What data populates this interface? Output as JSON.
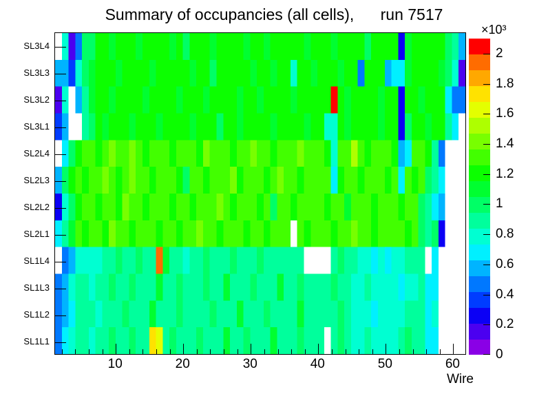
{
  "title": "Summary of occupancies (all cells),      run 7517",
  "colors": {
    "axis": "#000000",
    "text": "#000000",
    "background": "#FFFFFF"
  },
  "chart_data": {
    "type": "heatmap",
    "title": "Summary of occupancies (all cells),      run 7517",
    "xlabel": "Wire",
    "x_range": [
      1,
      62
    ],
    "x_major_ticks": [
      10,
      20,
      30,
      40,
      50,
      60
    ],
    "x_minor_tick_step": 2,
    "rows": [
      "SL3L4",
      "SL3L3",
      "SL3L2",
      "SL3L1",
      "SL2L4",
      "SL2L3",
      "SL2L2",
      "SL2L1",
      "SL1L4",
      "SL1L3",
      "SL1L2",
      "SL1L1"
    ],
    "z_axis": {
      "scale_label": "×10³",
      "tick_labels": [
        "0",
        "0.2",
        "0.4",
        "0.6",
        "0.8",
        "1",
        "1.2",
        "1.4",
        "1.6",
        "1.8",
        "2"
      ],
      "max": 2.1,
      "band_value_width": 0.105
    },
    "palette_low_to_high": [
      "#8A00E6",
      "#4B00F0",
      "#0B00F5",
      "#003CFF",
      "#0078FF",
      "#00B4FF",
      "#00F0FF",
      "#00FFD2",
      "#00FF9C",
      "#00FF66",
      "#00FF30",
      "#0CFF00",
      "#42FF00",
      "#78FF00",
      "#AEFF00",
      "#E4FF00",
      "#FFE200",
      "#FFA800",
      "#FF6C00",
      "#FF0000"
    ],
    "empty_color": "#FFFFFF",
    "grid_note": "palette index per wire (1-61), -1 = empty/white; rows listed top to bottom",
    "grid": [
      [
        -1,
        7,
        1,
        4,
        9,
        9,
        11,
        11,
        10,
        11,
        11,
        11,
        10,
        11,
        11,
        11,
        11,
        10,
        11,
        9,
        11,
        11,
        11,
        10,
        11,
        11,
        11,
        11,
        10,
        11,
        11,
        10,
        11,
        11,
        11,
        11,
        11,
        10,
        11,
        11,
        11,
        10,
        11,
        11,
        11,
        11,
        9,
        11,
        11,
        11,
        11,
        2,
        10,
        11,
        11,
        11,
        11,
        11,
        9,
        8,
        5
      ],
      [
        5,
        5,
        3,
        7,
        9,
        10,
        11,
        11,
        11,
        10,
        11,
        11,
        11,
        11,
        10,
        11,
        11,
        11,
        11,
        11,
        10,
        11,
        11,
        9,
        11,
        11,
        11,
        11,
        11,
        10,
        11,
        11,
        10,
        11,
        11,
        7,
        11,
        11,
        10,
        11,
        11,
        11,
        10,
        11,
        11,
        4,
        11,
        11,
        11,
        5,
        6,
        6,
        10,
        11,
        11,
        11,
        11,
        10,
        9,
        7,
        1
      ],
      [
        1,
        7,
        -1,
        5,
        8,
        10,
        11,
        11,
        10,
        11,
        11,
        11,
        11,
        10,
        11,
        11,
        11,
        11,
        10,
        11,
        11,
        11,
        10,
        11,
        11,
        11,
        11,
        10,
        11,
        11,
        10,
        11,
        11,
        11,
        11,
        10,
        11,
        11,
        11,
        11,
        11,
        19,
        11,
        10,
        11,
        11,
        11,
        11,
        10,
        11,
        11,
        2,
        11,
        11,
        10,
        11,
        11,
        11,
        6,
        4,
        4
      ],
      [
        3,
        5,
        -1,
        -1,
        8,
        9,
        11,
        10,
        11,
        11,
        11,
        10,
        11,
        11,
        11,
        10,
        11,
        11,
        11,
        11,
        10,
        11,
        11,
        11,
        9,
        11,
        11,
        10,
        11,
        11,
        11,
        11,
        10,
        11,
        11,
        11,
        11,
        10,
        11,
        11,
        7,
        7,
        11,
        10,
        11,
        11,
        11,
        11,
        10,
        11,
        11,
        2,
        9,
        11,
        11,
        10,
        11,
        11,
        8,
        6,
        -1
      ],
      [
        -1,
        6,
        9,
        11,
        12,
        12,
        11,
        12,
        13,
        12,
        12,
        13,
        12,
        11,
        12,
        12,
        12,
        11,
        12,
        12,
        12,
        11,
        13,
        12,
        12,
        12,
        11,
        12,
        12,
        13,
        12,
        12,
        11,
        12,
        12,
        12,
        13,
        12,
        12,
        12,
        11,
        7,
        12,
        12,
        14,
        12,
        11,
        12,
        12,
        12,
        11,
        5,
        6,
        12,
        12,
        11,
        8,
        4,
        -1,
        -1,
        -1
      ],
      [
        5,
        9,
        11,
        12,
        11,
        12,
        12,
        13,
        12,
        11,
        12,
        13,
        12,
        12,
        11,
        12,
        12,
        12,
        11,
        9,
        12,
        12,
        11,
        12,
        12,
        12,
        13,
        11,
        12,
        12,
        12,
        11,
        12,
        13,
        12,
        12,
        11,
        12,
        12,
        12,
        12,
        6,
        11,
        12,
        12,
        11,
        12,
        12,
        12,
        11,
        12,
        6,
        12,
        11,
        12,
        9,
        8,
        6,
        -1,
        -1,
        -1
      ],
      [
        2,
        7,
        9,
        11,
        12,
        12,
        11,
        12,
        12,
        11,
        13,
        12,
        12,
        11,
        12,
        12,
        12,
        11,
        12,
        12,
        11,
        12,
        12,
        12,
        13,
        12,
        11,
        12,
        12,
        12,
        11,
        12,
        9,
        12,
        12,
        11,
        12,
        12,
        12,
        12,
        11,
        12,
        12,
        10,
        12,
        12,
        12,
        11,
        12,
        12,
        12,
        11,
        12,
        12,
        9,
        8,
        6,
        5,
        -1,
        -1,
        -1
      ],
      [
        6,
        8,
        10,
        12,
        11,
        12,
        12,
        11,
        13,
        12,
        12,
        11,
        12,
        12,
        12,
        11,
        12,
        12,
        11,
        12,
        12,
        13,
        12,
        12,
        11,
        12,
        12,
        12,
        11,
        12,
        12,
        11,
        12,
        12,
        12,
        -1,
        12,
        11,
        12,
        12,
        12,
        11,
        12,
        12,
        13,
        12,
        12,
        11,
        12,
        12,
        12,
        12,
        11,
        12,
        9,
        8,
        9,
        2,
        -1,
        -1,
        -1
      ],
      [
        -1,
        4,
        5,
        7,
        7,
        7,
        7,
        8,
        8,
        9,
        8,
        8,
        9,
        8,
        8,
        18,
        10,
        8,
        8,
        7,
        8,
        8,
        9,
        8,
        8,
        8,
        9,
        8,
        8,
        8,
        9,
        8,
        8,
        8,
        8,
        8,
        8,
        -1,
        -1,
        -1,
        -1,
        8,
        9,
        8,
        8,
        7,
        7,
        6,
        7,
        6,
        7,
        7,
        8,
        8,
        8,
        -1,
        6,
        -1,
        -1,
        -1,
        -1
      ],
      [
        4,
        5,
        7,
        8,
        8,
        7,
        8,
        8,
        9,
        8,
        8,
        9,
        8,
        8,
        8,
        10,
        8,
        8,
        9,
        8,
        8,
        8,
        9,
        8,
        8,
        10,
        8,
        8,
        8,
        9,
        8,
        8,
        8,
        10,
        8,
        8,
        9,
        8,
        8,
        8,
        8,
        9,
        8,
        8,
        7,
        7,
        8,
        7,
        7,
        7,
        7,
        6,
        7,
        7,
        8,
        6,
        6,
        -1,
        -1,
        -1,
        -1
      ],
      [
        4,
        5,
        6,
        8,
        8,
        8,
        7,
        8,
        8,
        8,
        9,
        8,
        8,
        8,
        10,
        8,
        8,
        8,
        9,
        8,
        8,
        8,
        8,
        9,
        8,
        8,
        8,
        10,
        8,
        8,
        8,
        9,
        8,
        8,
        8,
        8,
        10,
        8,
        8,
        8,
        8,
        8,
        9,
        8,
        7,
        7,
        7,
        6,
        7,
        7,
        7,
        7,
        8,
        8,
        8,
        6,
        7,
        -1,
        -1,
        -1,
        -1
      ],
      [
        4,
        6,
        7,
        8,
        8,
        7,
        8,
        8,
        9,
        8,
        8,
        9,
        8,
        8,
        16,
        15,
        8,
        9,
        8,
        8,
        8,
        9,
        8,
        8,
        8,
        10,
        8,
        8,
        9,
        8,
        8,
        8,
        10,
        8,
        8,
        8,
        9,
        8,
        8,
        8,
        -1,
        8,
        9,
        8,
        7,
        7,
        8,
        7,
        7,
        7,
        7,
        8,
        9,
        8,
        8,
        6,
        6,
        -1,
        -1,
        -1,
        -1
      ]
    ]
  }
}
